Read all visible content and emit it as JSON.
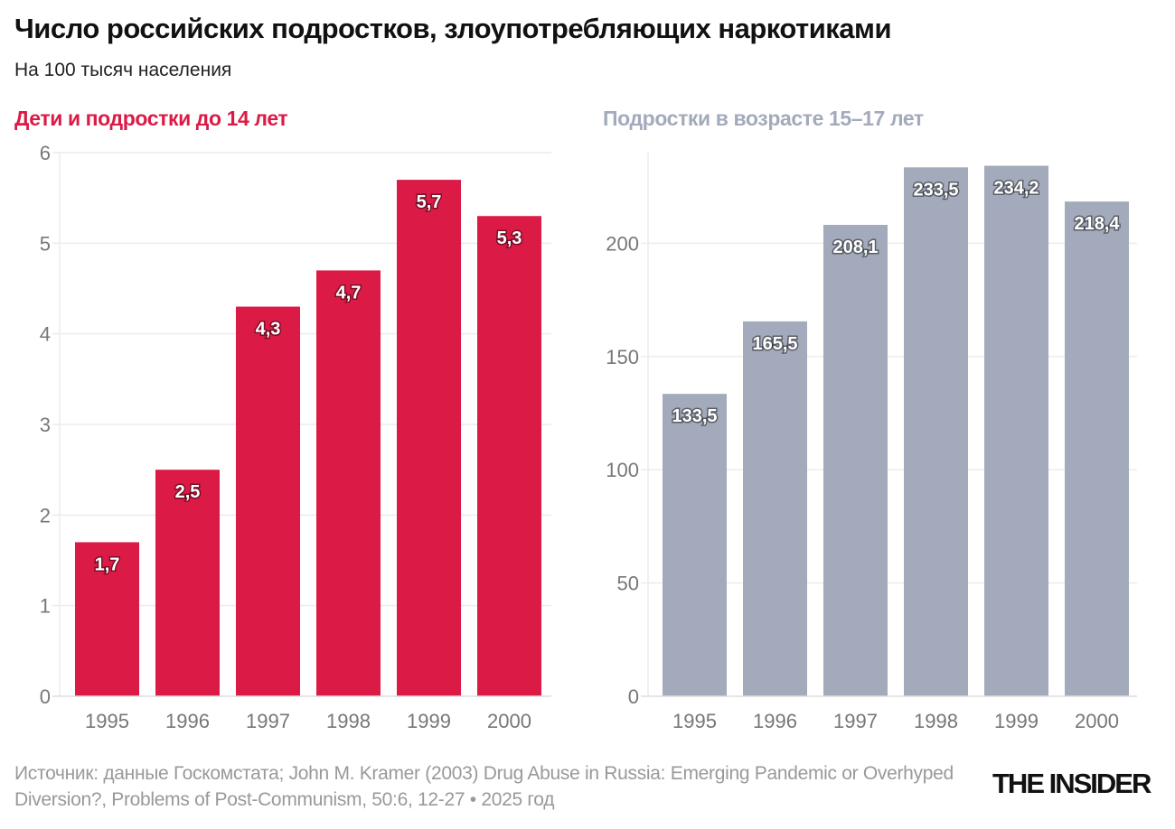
{
  "title": "Число российских подростков, злоупотребляющих наркотиками",
  "subtitle": "На 100 тысяч населения",
  "source": "Источник: данные Госкомстата; John M. Kramer (2003) Drug Abuse in Russia: Emerging Pandemic or Overhyped Diversion?, Problems of Post-Communism, 50:6, 12-27 • 2025 год",
  "logo": "THE INSIDER",
  "chart_data": [
    {
      "type": "bar",
      "title": "Дети и подростки до 14 лет",
      "color": "#dc1a46",
      "categories": [
        "1995",
        "1996",
        "1997",
        "1998",
        "1999",
        "2000"
      ],
      "values": [
        1.7,
        2.5,
        4.3,
        4.7,
        5.7,
        5.3
      ],
      "labels": [
        "1,7",
        "2,5",
        "4,3",
        "4,7",
        "5,7",
        "5,3"
      ],
      "yticks": [
        0,
        1,
        2,
        3,
        4,
        5,
        6
      ],
      "ylim": [
        0,
        6
      ],
      "grid": true
    },
    {
      "type": "bar",
      "title": "Подростки в возрасте 15–17 лет",
      "color": "#a3aabb",
      "categories": [
        "1995",
        "1996",
        "1997",
        "1998",
        "1999",
        "2000"
      ],
      "values": [
        133.5,
        165.5,
        208.1,
        233.5,
        234.2,
        218.4
      ],
      "labels": [
        "133,5",
        "165,5",
        "208,1",
        "233,5",
        "234,2",
        "218,4"
      ],
      "yticks": [
        0,
        50,
        100,
        150,
        200
      ],
      "ylim": [
        0,
        240
      ],
      "grid": true
    }
  ]
}
